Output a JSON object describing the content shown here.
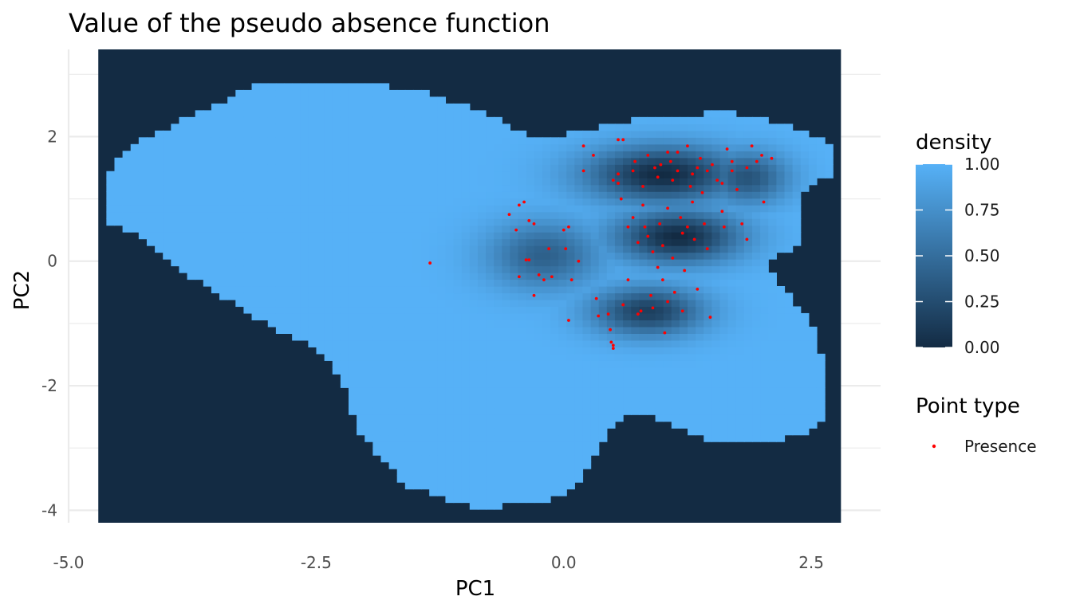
{
  "chart_data": {
    "type": "heatmap",
    "title": "Value of the pseudo absence function",
    "xlabel": "PC1",
    "ylabel": "PC2",
    "xlim": [
      -5.0,
      3.2
    ],
    "ylim": [
      -4.2,
      3.4
    ],
    "raster_extent": {
      "x": [
        -4.7,
        2.8
      ],
      "y": [
        -4.2,
        3.4
      ]
    },
    "x_ticks": [
      -5.0,
      -2.5,
      0.0,
      2.5
    ],
    "x_tick_labels": [
      "-5.0",
      "-2.5",
      "0.0",
      "2.5"
    ],
    "y_ticks": [
      -4,
      -2,
      0,
      2
    ],
    "y_tick_labels": [
      "-4",
      "-2",
      "0",
      "2"
    ],
    "grid": true,
    "fill_legend": {
      "title": "density",
      "low_color": "#132B43",
      "high_color": "#56B1F7",
      "range": [
        0,
        1
      ],
      "breaks": [
        0.0,
        0.25,
        0.5,
        0.75,
        1.0
      ],
      "break_labels": [
        "0.00",
        "0.25",
        "0.50",
        "0.75",
        "1.00"
      ]
    },
    "point_legend": {
      "title": "Point type",
      "entries": [
        {
          "label": "Presence",
          "color": "#FF0000"
        }
      ]
    },
    "region_outline": [
      [
        -4.65,
        1.35
      ],
      [
        -4.4,
        1.85
      ],
      [
        -4.0,
        2.15
      ],
      [
        -3.4,
        2.6
      ],
      [
        -3.1,
        2.85
      ],
      [
        -2.1,
        2.9
      ],
      [
        -1.4,
        2.7
      ],
      [
        -0.9,
        2.45
      ],
      [
        -0.5,
        2.15
      ],
      [
        -0.3,
        1.95
      ],
      [
        0.2,
        2.1
      ],
      [
        0.75,
        2.3
      ],
      [
        1.7,
        2.4
      ],
      [
        2.45,
        2.1
      ],
      [
        2.75,
        1.8
      ],
      [
        2.75,
        1.4
      ],
      [
        2.4,
        1.15
      ],
      [
        2.4,
        0.25
      ],
      [
        2.05,
        0.05
      ],
      [
        2.15,
        -0.35
      ],
      [
        2.5,
        -0.95
      ],
      [
        2.6,
        -1.55
      ],
      [
        2.65,
        -2.5
      ],
      [
        2.5,
        -2.75
      ],
      [
        2.1,
        -2.9
      ],
      [
        1.4,
        -2.85
      ],
      [
        0.75,
        -2.4
      ],
      [
        0.45,
        -2.7
      ],
      [
        0.15,
        -3.6
      ],
      [
        -0.2,
        -3.9
      ],
      [
        -0.95,
        -3.95
      ],
      [
        -1.6,
        -3.6
      ],
      [
        -2.05,
        -2.8
      ],
      [
        -2.2,
        -2.1
      ],
      [
        -2.45,
        -1.45
      ],
      [
        -2.9,
        -1.1
      ],
      [
        -3.4,
        -0.6
      ],
      [
        -3.8,
        -0.2
      ],
      [
        -4.3,
        0.45
      ],
      [
        -4.65,
        0.65
      ]
    ],
    "low_density_clusters": [
      {
        "x": 1.0,
        "y": 1.4,
        "sx": 0.55,
        "sy": 0.32,
        "depth": 1.0
      },
      {
        "x": 1.15,
        "y": 0.4,
        "sx": 0.45,
        "sy": 0.3,
        "depth": 1.0
      },
      {
        "x": 0.85,
        "y": -0.8,
        "sx": 0.4,
        "sy": 0.28,
        "depth": 0.85
      },
      {
        "x": 1.85,
        "y": 1.35,
        "sx": 0.3,
        "sy": 0.3,
        "depth": 0.7
      },
      {
        "x": -0.2,
        "y": 0.1,
        "sx": 0.4,
        "sy": 0.38,
        "depth": 0.6
      }
    ],
    "presence_points": [
      [
        -1.35,
        -0.03
      ],
      [
        -0.45,
        0.9
      ],
      [
        -0.4,
        0.95
      ],
      [
        -0.55,
        0.75
      ],
      [
        -0.48,
        0.5
      ],
      [
        -0.35,
        0.65
      ],
      [
        -0.3,
        0.6
      ],
      [
        -0.38,
        0.02
      ],
      [
        -0.35,
        0.02
      ],
      [
        -0.45,
        -0.25
      ],
      [
        -0.25,
        -0.22
      ],
      [
        -0.2,
        -0.3
      ],
      [
        -0.12,
        -0.25
      ],
      [
        -0.3,
        -0.55
      ],
      [
        -0.15,
        0.2
      ],
      [
        0.0,
        0.5
      ],
      [
        0.05,
        0.55
      ],
      [
        0.02,
        0.2
      ],
      [
        0.08,
        -0.3
      ],
      [
        0.15,
        0.0
      ],
      [
        0.05,
        -0.95
      ],
      [
        0.2,
        1.85
      ],
      [
        0.2,
        1.45
      ],
      [
        0.3,
        1.7
      ],
      [
        0.33,
        -0.6
      ],
      [
        0.35,
        -0.88
      ],
      [
        0.45,
        -0.85
      ],
      [
        0.47,
        -1.1
      ],
      [
        0.48,
        -1.3
      ],
      [
        0.5,
        -1.35
      ],
      [
        0.5,
        -1.4
      ],
      [
        0.5,
        1.3
      ],
      [
        0.55,
        1.25
      ],
      [
        0.58,
        1.0
      ],
      [
        0.55,
        1.95
      ],
      [
        0.6,
        1.95
      ],
      [
        0.55,
        1.4
      ],
      [
        0.6,
        -0.7
      ],
      [
        0.65,
        -0.3
      ],
      [
        0.7,
        0.7
      ],
      [
        0.72,
        1.6
      ],
      [
        0.75,
        -0.85
      ],
      [
        0.78,
        -0.8
      ],
      [
        0.8,
        1.2
      ],
      [
        0.8,
        0.9
      ],
      [
        0.82,
        0.55
      ],
      [
        0.85,
        0.4
      ],
      [
        0.88,
        -0.55
      ],
      [
        0.9,
        -0.75
      ],
      [
        0.92,
        1.5
      ],
      [
        0.95,
        1.35
      ],
      [
        0.97,
        0.6
      ],
      [
        1.0,
        0.25
      ],
      [
        1.0,
        -0.3
      ],
      [
        1.02,
        -1.15
      ],
      [
        1.05,
        1.75
      ],
      [
        1.08,
        1.6
      ],
      [
        1.1,
        1.3
      ],
      [
        1.1,
        0.05
      ],
      [
        1.12,
        -0.5
      ],
      [
        1.15,
        1.45
      ],
      [
        1.18,
        0.7
      ],
      [
        1.2,
        0.45
      ],
      [
        1.22,
        -0.15
      ],
      [
        1.25,
        1.85
      ],
      [
        1.28,
        1.2
      ],
      [
        1.3,
        0.95
      ],
      [
        1.32,
        0.35
      ],
      [
        1.35,
        -0.45
      ],
      [
        1.38,
        1.65
      ],
      [
        1.4,
        1.1
      ],
      [
        1.42,
        0.6
      ],
      [
        1.45,
        0.2
      ],
      [
        1.48,
        -0.9
      ],
      [
        1.5,
        1.55
      ],
      [
        1.55,
        1.3
      ],
      [
        1.6,
        0.8
      ],
      [
        1.62,
        0.55
      ],
      [
        1.65,
        1.8
      ],
      [
        1.7,
        1.45
      ],
      [
        1.75,
        1.15
      ],
      [
        1.8,
        0.6
      ],
      [
        1.85,
        0.35
      ],
      [
        1.9,
        1.85
      ],
      [
        1.95,
        1.6
      ],
      [
        2.0,
        1.7
      ],
      [
        2.02,
        0.95
      ],
      [
        2.1,
        1.65
      ],
      [
        0.98,
        1.55
      ],
      [
        1.05,
        0.85
      ],
      [
        0.9,
        0.15
      ],
      [
        1.2,
        -0.8
      ],
      [
        1.3,
        1.4
      ],
      [
        0.7,
        1.45
      ],
      [
        0.85,
        1.7
      ],
      [
        1.15,
        1.75
      ],
      [
        1.25,
        0.55
      ],
      [
        1.35,
        1.5
      ],
      [
        1.45,
        1.45
      ],
      [
        0.95,
        -0.1
      ],
      [
        1.05,
        -0.65
      ],
      [
        0.75,
        0.3
      ],
      [
        1.6,
        1.25
      ],
      [
        1.7,
        1.6
      ],
      [
        1.85,
        1.5
      ],
      [
        0.65,
        0.55
      ]
    ]
  }
}
